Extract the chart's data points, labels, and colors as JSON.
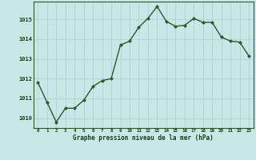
{
  "x": [
    0,
    1,
    2,
    3,
    4,
    5,
    6,
    7,
    8,
    9,
    10,
    11,
    12,
    13,
    14,
    15,
    16,
    17,
    18,
    19,
    20,
    21,
    22,
    23
  ],
  "y": [
    1011.8,
    1010.8,
    1009.8,
    1010.5,
    1010.5,
    1010.9,
    1011.6,
    1011.9,
    1012.0,
    1013.7,
    1013.9,
    1014.6,
    1015.05,
    1015.65,
    1014.9,
    1014.65,
    1014.7,
    1015.05,
    1014.85,
    1014.85,
    1014.1,
    1013.9,
    1013.85,
    1013.15
  ],
  "line_color": "#2d5a27",
  "marker_color": "#2d5a27",
  "bg_color": "#c8e8e8",
  "grid_color": "#b0d8d8",
  "xlabel": "Graphe pression niveau de la mer (hPa)",
  "xlabel_color": "#1a3a14",
  "tick_color": "#1a3a14",
  "ylim": [
    1009.5,
    1015.9
  ],
  "xlim": [
    -0.5,
    23.5
  ],
  "yticks": [
    1010,
    1011,
    1012,
    1013,
    1014,
    1015
  ],
  "xticks": [
    0,
    1,
    2,
    3,
    4,
    5,
    6,
    7,
    8,
    9,
    10,
    11,
    12,
    13,
    14,
    15,
    16,
    17,
    18,
    19,
    20,
    21,
    22,
    23
  ],
  "xtick_labels": [
    "0",
    "1",
    "2",
    "3",
    "4",
    "5",
    "6",
    "7",
    "8",
    "9",
    "10",
    "11",
    "12",
    "13",
    "14",
    "15",
    "16",
    "17",
    "18",
    "19",
    "20",
    "21",
    "22",
    "23"
  ]
}
